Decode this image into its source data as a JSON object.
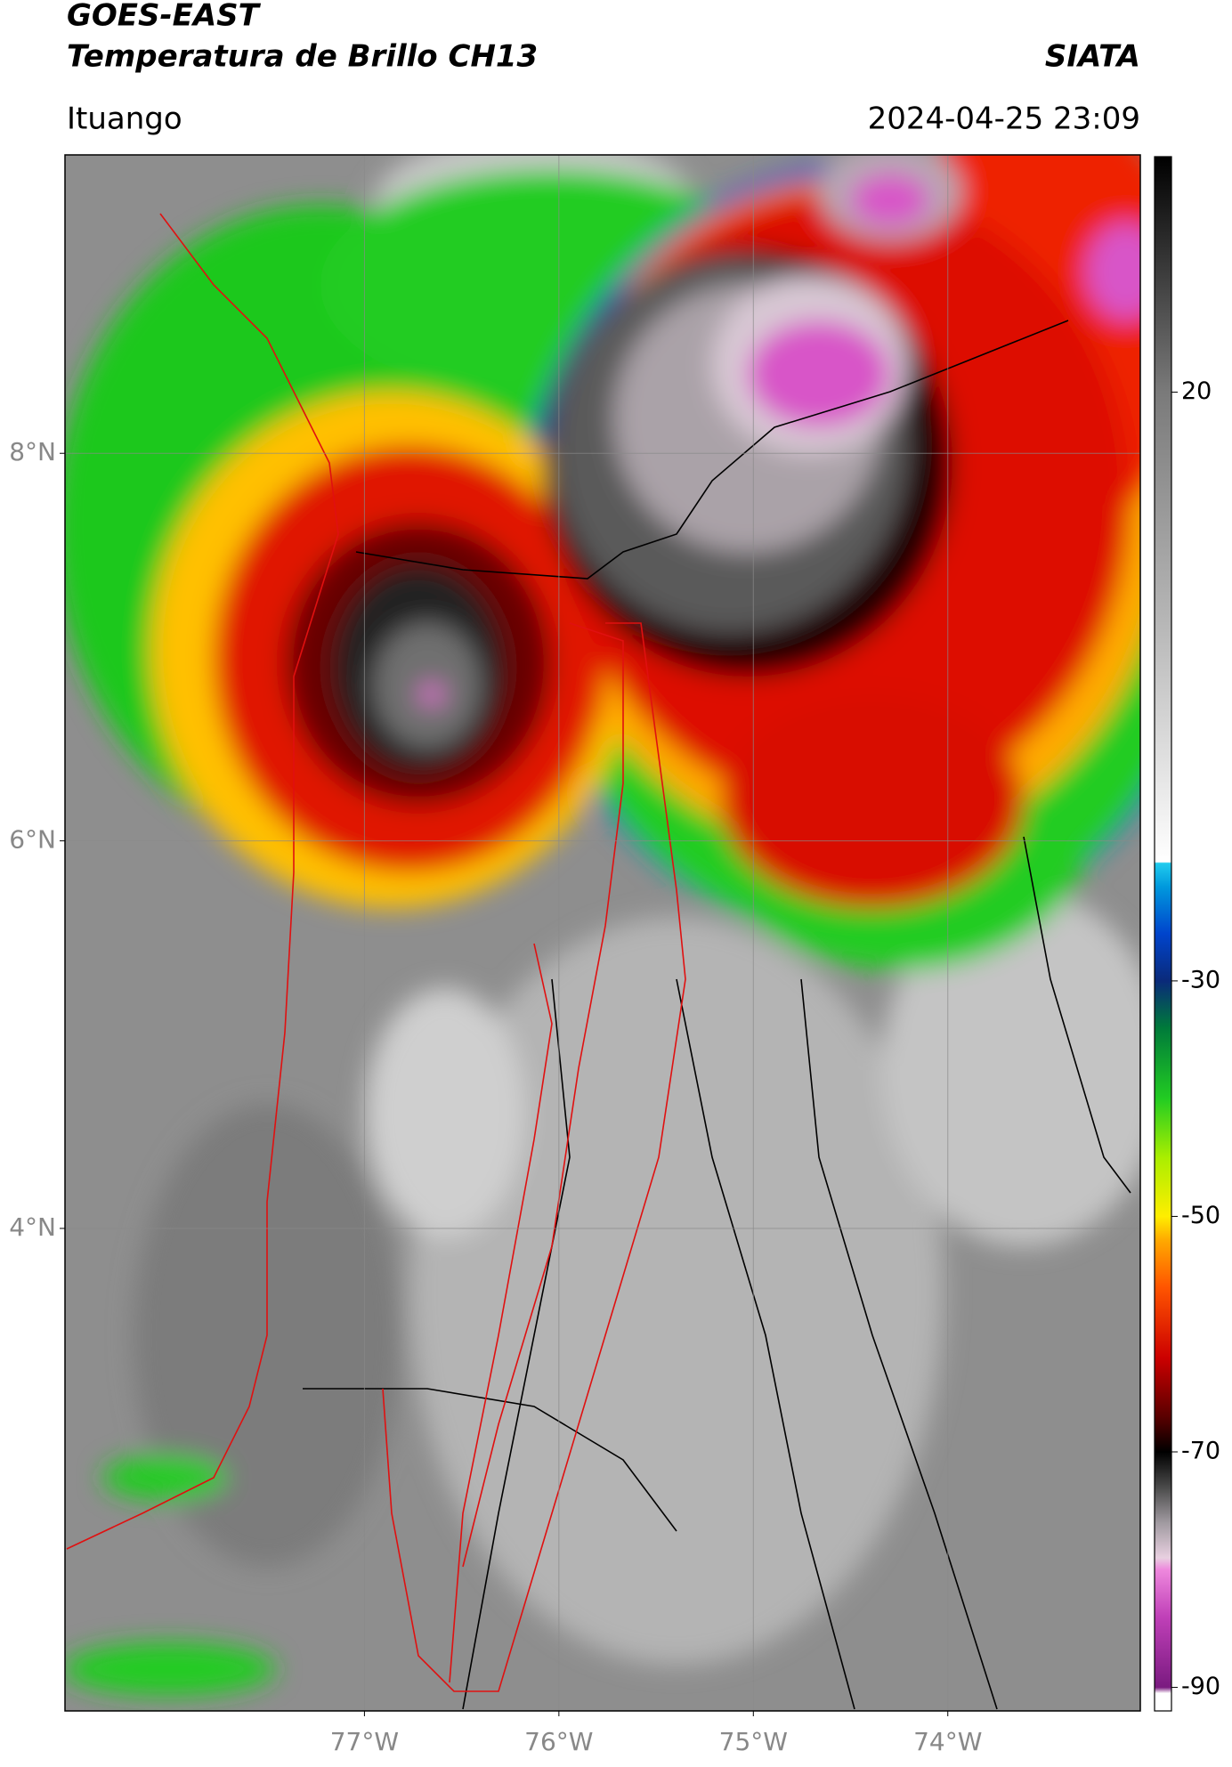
{
  "header": {
    "title": "GOES-EAST",
    "subtitle": "Temperatura de Brillo CH13",
    "brand": "SIATA",
    "location": "Ituango",
    "timestamp": "2024-04-25 23:09"
  },
  "map": {
    "xlim": [
      -78.54,
      -73.01
    ],
    "ylim": [
      1.51,
      9.54
    ],
    "xticks": [
      {
        "value": -77,
        "label": "77°W"
      },
      {
        "value": -76,
        "label": "76°W"
      },
      {
        "value": -75,
        "label": "75°W"
      },
      {
        "value": -74,
        "label": "74°W"
      }
    ],
    "yticks": [
      {
        "value": 4,
        "label": "4°N"
      },
      {
        "value": 6,
        "label": "6°N"
      },
      {
        "value": 8,
        "label": "8°N"
      }
    ],
    "grid": true
  },
  "colorbar": {
    "lim": [
      -92,
      40
    ],
    "ticks": [
      -90,
      -70,
      -50,
      -30,
      20
    ],
    "colormap": [
      {
        "value": -92,
        "color": "#ffffff"
      },
      {
        "value": -90.5,
        "color": "#ffffff"
      },
      {
        "value": -90,
        "color": "#7a1a80"
      },
      {
        "value": -84,
        "color": "#c040b8"
      },
      {
        "value": -80,
        "color": "#ee88dd"
      },
      {
        "value": -79,
        "color": "#e8d0e0"
      },
      {
        "value": -76,
        "color": "#a09aa0"
      },
      {
        "value": -73,
        "color": "#4a4a4a"
      },
      {
        "value": -70,
        "color": "#000000"
      },
      {
        "value": -67,
        "color": "#5a0000"
      },
      {
        "value": -62,
        "color": "#cc0000"
      },
      {
        "value": -56,
        "color": "#ff5500"
      },
      {
        "value": -52,
        "color": "#ffaa00"
      },
      {
        "value": -50,
        "color": "#ffee00"
      },
      {
        "value": -45,
        "color": "#aaee00"
      },
      {
        "value": -40,
        "color": "#22cc22"
      },
      {
        "value": -34,
        "color": "#007a3a"
      },
      {
        "value": -30,
        "color": "#0a2a7a"
      },
      {
        "value": -26,
        "color": "#0044cc"
      },
      {
        "value": -22,
        "color": "#0099dd"
      },
      {
        "value": -20,
        "color": "#22ccee"
      },
      {
        "value": -19.9,
        "color": "#ffffff"
      },
      {
        "value": 0,
        "color": "#b8b8b8"
      },
      {
        "value": 20,
        "color": "#7a7a7a"
      },
      {
        "value": 40,
        "color": "#000000"
      }
    ]
  }
}
